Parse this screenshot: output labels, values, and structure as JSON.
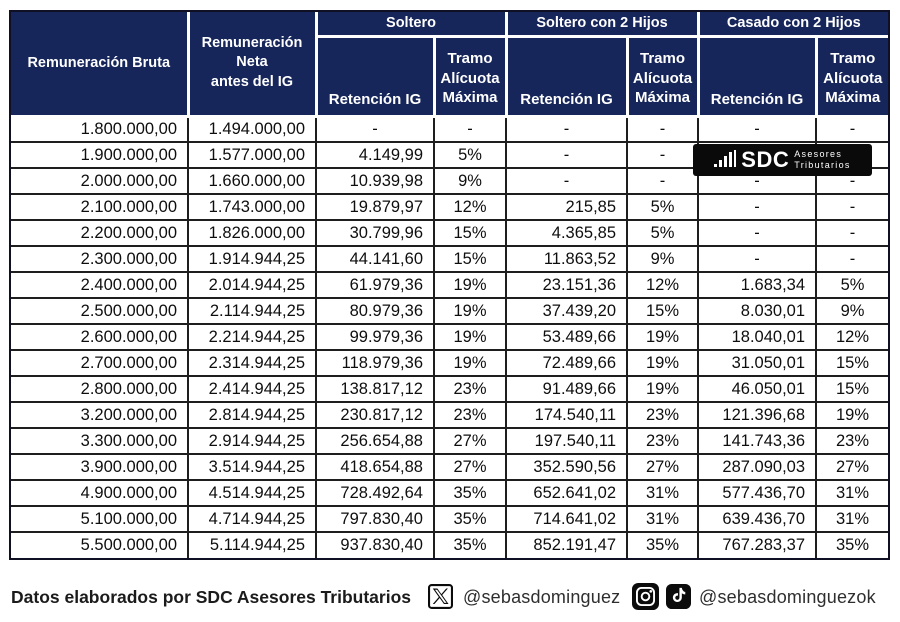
{
  "colors": {
    "header_navy": "#16265b",
    "body_border": "#1e1e1e",
    "logo_black": "#0a0a0a",
    "text_dark": "#0e0e0e"
  },
  "table": {
    "header": {
      "bruta": "Remuneración Bruta",
      "neta": "Remuneración\nNeta\nantes del IG",
      "groups": [
        {
          "label": "Soltero"
        },
        {
          "label": "Soltero con 2 Hijos"
        },
        {
          "label": "Casado con 2 Hijos"
        }
      ],
      "retencion": "Retención IG",
      "tramo": "Tramo\nAlícuota\nMáxima"
    }
  },
  "chart_data": {
    "type": "table",
    "columns": [
      "Remuneración Bruta",
      "Remuneración Neta antes del IG",
      "Soltero - Retención IG",
      "Soltero - Tramo Alícuota Máxima",
      "Soltero con 2 Hijos - Retención IG",
      "Soltero con 2 Hijos - Tramo Alícuota Máxima",
      "Casado con 2 Hijos - Retención IG",
      "Casado con 2 Hijos - Tramo Alícuota Máxima"
    ],
    "rows": [
      [
        "1.800.000,00",
        "1.494.000,00",
        "-",
        "-",
        "-",
        "-",
        "-",
        "-"
      ],
      [
        "1.900.000,00",
        "1.577.000,00",
        "4.149,99",
        "5%",
        "-",
        "-",
        "-",
        "-"
      ],
      [
        "2.000.000,00",
        "1.660.000,00",
        "10.939,98",
        "9%",
        "-",
        "-",
        "-",
        "-"
      ],
      [
        "2.100.000,00",
        "1.743.000,00",
        "19.879,97",
        "12%",
        "215,85",
        "5%",
        "-",
        "-"
      ],
      [
        "2.200.000,00",
        "1.826.000,00",
        "30.799,96",
        "15%",
        "4.365,85",
        "5%",
        "-",
        "-"
      ],
      [
        "2.300.000,00",
        "1.914.944,25",
        "44.141,60",
        "15%",
        "11.863,52",
        "9%",
        "-",
        "-"
      ],
      [
        "2.400.000,00",
        "2.014.944,25",
        "61.979,36",
        "19%",
        "23.151,36",
        "12%",
        "1.683,34",
        "5%"
      ],
      [
        "2.500.000,00",
        "2.114.944,25",
        "80.979,36",
        "19%",
        "37.439,20",
        "15%",
        "8.030,01",
        "9%"
      ],
      [
        "2.600.000,00",
        "2.214.944,25",
        "99.979,36",
        "19%",
        "53.489,66",
        "19%",
        "18.040,01",
        "12%"
      ],
      [
        "2.700.000,00",
        "2.314.944,25",
        "118.979,36",
        "19%",
        "72.489,66",
        "19%",
        "31.050,01",
        "15%"
      ],
      [
        "2.800.000,00",
        "2.414.944,25",
        "138.817,12",
        "23%",
        "91.489,66",
        "19%",
        "46.050,01",
        "15%"
      ],
      [
        "3.200.000,00",
        "2.814.944,25",
        "230.817,12",
        "23%",
        "174.540,11",
        "23%",
        "121.396,68",
        "19%"
      ],
      [
        "3.300.000,00",
        "2.914.944,25",
        "256.654,88",
        "27%",
        "197.540,11",
        "23%",
        "141.743,36",
        "23%"
      ],
      [
        "3.900.000,00",
        "3.514.944,25",
        "418.654,88",
        "27%",
        "352.590,56",
        "27%",
        "287.090,03",
        "27%"
      ],
      [
        "4.900.000,00",
        "4.514.944,25",
        "728.492,64",
        "35%",
        "652.641,02",
        "31%",
        "577.436,70",
        "31%"
      ],
      [
        "5.100.000,00",
        "4.714.944,25",
        "797.830,40",
        "35%",
        "714.641,02",
        "31%",
        "639.436,70",
        "31%"
      ],
      [
        "5.500.000,00",
        "5.114.944,25",
        "937.830,40",
        "35%",
        "852.191,47",
        "35%",
        "767.283,37",
        "35%"
      ]
    ]
  },
  "logo": {
    "brand": "SDC",
    "tagline_line1": "Asesores",
    "tagline_line2": "Tributarios"
  },
  "footer": {
    "credit": "Datos elaborados por SDC Asesores Tributarios",
    "x_handle": "@sebasdominguez",
    "social_handle": "@sebasdominguezok"
  },
  "icons": [
    "x-logo-icon",
    "instagram-icon",
    "tiktok-icon",
    "bar-chart-icon"
  ]
}
